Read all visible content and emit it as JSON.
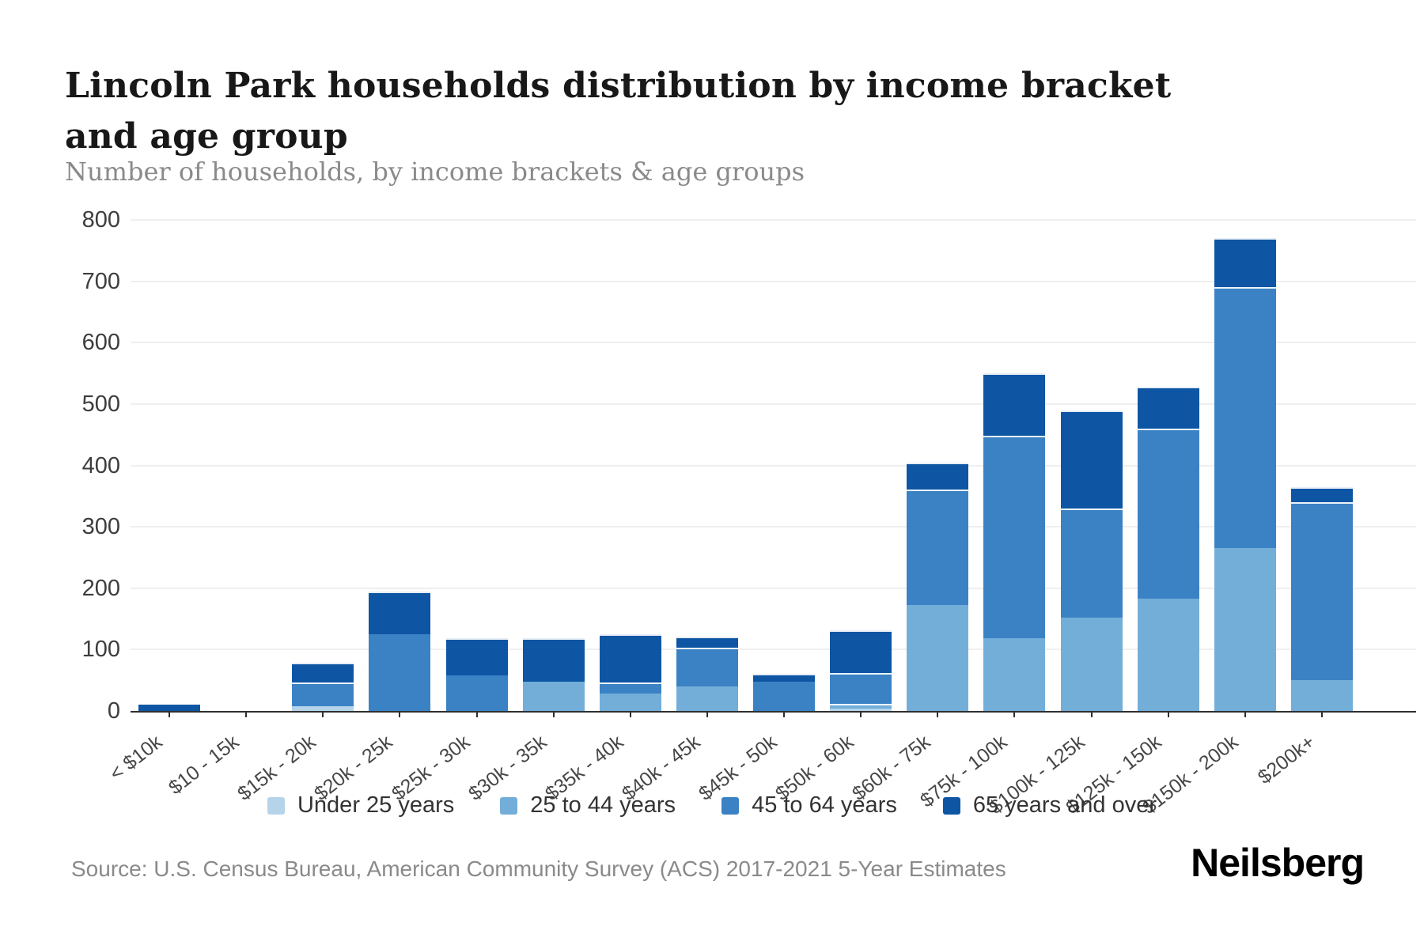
{
  "header": {
    "title": "Lincoln Park households distribution by income bracket and age group",
    "subtitle": "Number of households, by income brackets & age groups"
  },
  "footer": {
    "source": "Source: U.S. Census Bureau, American Community Survey (ACS) 2017-2021 5-Year Estimates",
    "brand": "Neilsberg"
  },
  "chart_data": {
    "type": "bar",
    "stacked": true,
    "title": "Lincoln Park households distribution by income bracket and age group",
    "subtitle": "Number of households, by income brackets & age groups",
    "xlabel": "",
    "ylabel": "Number of households",
    "ylim": [
      0,
      800
    ],
    "ytick_step": 100,
    "grid": true,
    "legend_position": "bottom",
    "categories": [
      "< $10k",
      "$10 - 15k",
      "$15k - 20k",
      "$20k - 25k",
      "$25k - 30k",
      "$30k - 35k",
      "$35k - 40k",
      "$40k - 45k",
      "$45k - 50k",
      "$50k - 60k",
      "$60k - 75k",
      "$75k - 100k",
      "$100k - 125k",
      "$125k - 150k",
      "$150k - 200k",
      "$200k+"
    ],
    "series": [
      {
        "name": "Under 25 years",
        "color": "#b5d4ea",
        "values": [
          0,
          0,
          8,
          0,
          0,
          0,
          0,
          0,
          0,
          4,
          0,
          0,
          0,
          0,
          0,
          0
        ]
      },
      {
        "name": "25 to 44 years",
        "color": "#73aed9",
        "values": [
          0,
          0,
          0,
          0,
          0,
          48,
          28,
          40,
          0,
          8,
          173,
          118,
          152,
          183,
          266,
          50
        ]
      },
      {
        "name": "45 to 64 years",
        "color": "#3b82c4",
        "values": [
          0,
          0,
          38,
          125,
          58,
          0,
          18,
          63,
          48,
          50,
          188,
          330,
          178,
          277,
          424,
          290
        ]
      },
      {
        "name": "65 years and over",
        "color": "#0e56a3",
        "values": [
          10,
          0,
          32,
          70,
          60,
          70,
          79,
          18,
          12,
          70,
          43,
          102,
          160,
          68,
          80,
          25
        ]
      }
    ],
    "totals": [
      10,
      0,
      78,
      195,
      118,
      118,
      125,
      121,
      60,
      132,
      404,
      550,
      490,
      528,
      770,
      365
    ]
  }
}
